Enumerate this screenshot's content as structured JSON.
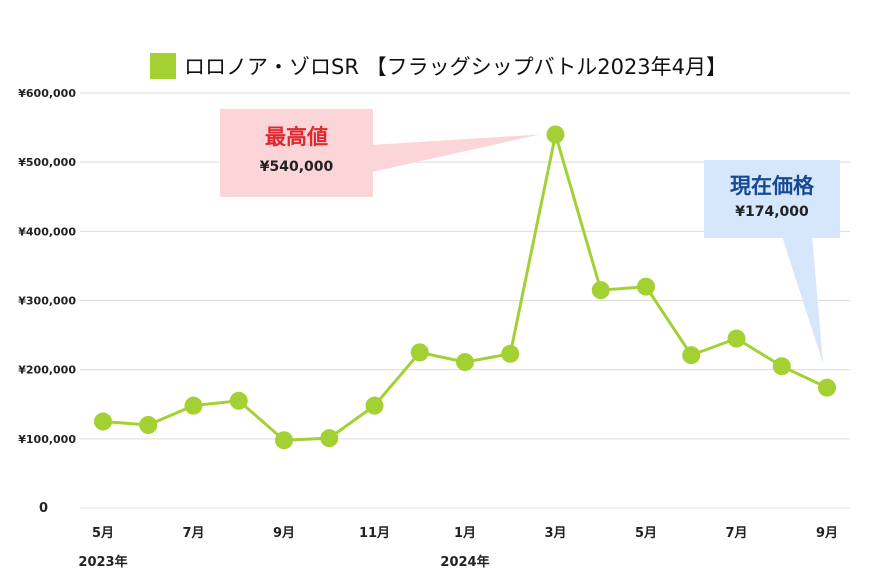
{
  "chart_data": {
    "type": "line",
    "title": "ロロノア・ゾロSR 【フラッグシップバトル2023年4月】",
    "series": [
      {
        "name": "ロロノア・ゾロSR 【フラッグシップバトル2023年4月】",
        "color": "#a3d133",
        "points": [
          {
            "x": "2023-05",
            "y": 125000
          },
          {
            "x": "2023-06",
            "y": 120000
          },
          {
            "x": "2023-07",
            "y": 148000
          },
          {
            "x": "2023-08",
            "y": 155000
          },
          {
            "x": "2023-09",
            "y": 98000
          },
          {
            "x": "2023-10",
            "y": 101000
          },
          {
            "x": "2023-11",
            "y": 148000
          },
          {
            "x": "2023-12",
            "y": 225000
          },
          {
            "x": "2024-01",
            "y": 211000
          },
          {
            "x": "2024-02",
            "y": 223000
          },
          {
            "x": "2024-03",
            "y": 540000
          },
          {
            "x": "2024-04",
            "y": 315000
          },
          {
            "x": "2024-05",
            "y": 320000
          },
          {
            "x": "2024-06",
            "y": 221000
          },
          {
            "x": "2024-07",
            "y": 245000
          },
          {
            "x": "2024-08",
            "y": 205000
          },
          {
            "x": "2024-09",
            "y": 174000
          }
        ]
      }
    ],
    "ylim": [
      0,
      600000
    ],
    "yticks": [
      {
        "value": 0,
        "label": "0"
      },
      {
        "value": 100000,
        "label": "¥100,000"
      },
      {
        "value": 200000,
        "label": "¥200,000"
      },
      {
        "value": 300000,
        "label": "¥300,000"
      },
      {
        "value": 400000,
        "label": "¥400,000"
      },
      {
        "value": 500000,
        "label": "¥500,000"
      },
      {
        "value": 600000,
        "label": "¥600,000"
      }
    ],
    "xticks": [
      {
        "x": "2023-05",
        "label": "5月",
        "year": "2023年"
      },
      {
        "x": "2023-07",
        "label": "7月"
      },
      {
        "x": "2023-09",
        "label": "9月"
      },
      {
        "x": "2023-11",
        "label": "11月"
      },
      {
        "x": "2024-01",
        "label": "1月",
        "year": "2024年"
      },
      {
        "x": "2024-03",
        "label": "3月"
      },
      {
        "x": "2024-05",
        "label": "5月"
      },
      {
        "x": "2024-07",
        "label": "7月"
      },
      {
        "x": "2024-09",
        "label": "9月"
      }
    ],
    "grid": true,
    "legend_position": "top",
    "annotations": {
      "max": {
        "title": "最高値",
        "value_label": "¥540,000",
        "x": "2024-03",
        "y": 540000,
        "color": "#e0292f",
        "bg": "#fcd5d8"
      },
      "current": {
        "title": "現在価格",
        "value_label": "¥174,000",
        "x": "2024-09",
        "y": 174000,
        "color": "#174a93",
        "bg": "#d6e6fb"
      }
    }
  }
}
